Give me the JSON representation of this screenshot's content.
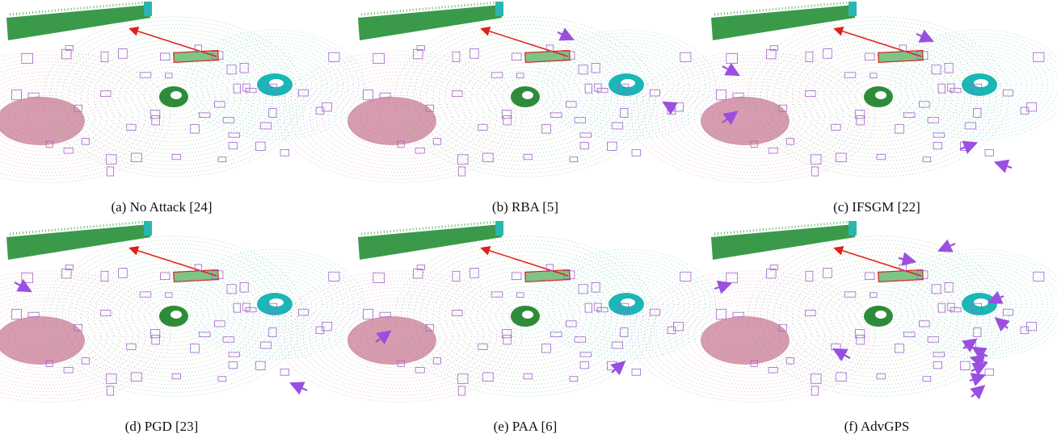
{
  "panels": [
    {
      "caption": "(a) No Attack [24]"
    },
    {
      "caption": "(b) RBA [5]"
    },
    {
      "caption": "(c) IFSGM [22]"
    },
    {
      "caption": "(d) PGD [23]"
    },
    {
      "caption": "(e) PAA [6]"
    },
    {
      "caption": "(f) AdvGPS"
    }
  ]
}
